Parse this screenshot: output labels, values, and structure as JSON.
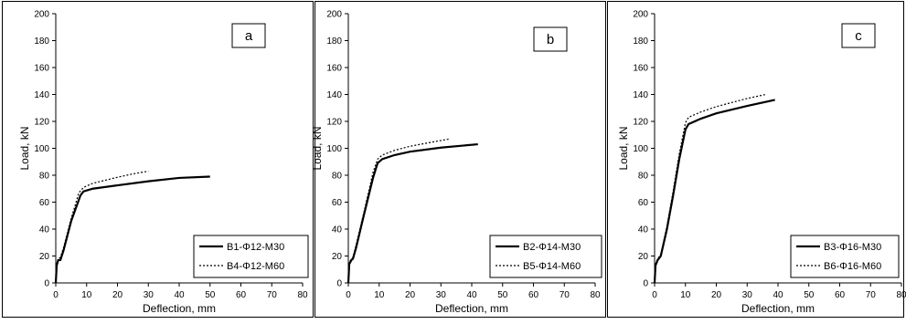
{
  "chart_data": [
    {
      "type": "line",
      "panel_label": "a",
      "xlabel": "Deflection, mm",
      "ylabel": "Load, kN",
      "xlim": [
        0,
        80
      ],
      "ylim": [
        0,
        200
      ],
      "xticks": [
        "0",
        "10",
        "20",
        "30",
        "40",
        "50",
        "60",
        "70",
        "80"
      ],
      "yticks": [
        "0",
        "20",
        "40",
        "60",
        "80",
        "100",
        "120",
        "140",
        "160",
        "180",
        "200"
      ],
      "grid": false,
      "legend_position": "bottom-right",
      "series": [
        {
          "name": "B1-Φ12-M30",
          "style": "solid",
          "color": "#000000",
          "points": [
            [
              0,
              0
            ],
            [
              0.3,
              13
            ],
            [
              0.8,
              17
            ],
            [
              1.5,
              17
            ],
            [
              2.5,
              24
            ],
            [
              5,
              46
            ],
            [
              8,
              65
            ],
            [
              9,
              68
            ],
            [
              12,
              70
            ],
            [
              20,
              72.5
            ],
            [
              30,
              75.5
            ],
            [
              40,
              78
            ],
            [
              50,
              79
            ]
          ]
        },
        {
          "name": "B4-Φ12-M60",
          "style": "dotted",
          "color": "#000000",
          "points": [
            [
              0,
              0
            ],
            [
              0.3,
              14
            ],
            [
              0.8,
              18
            ],
            [
              1.5,
              19
            ],
            [
              2.5,
              26
            ],
            [
              5,
              48
            ],
            [
              7.5,
              67
            ],
            [
              9,
              71
            ],
            [
              12,
              74
            ],
            [
              20,
              78.5
            ],
            [
              25,
              81
            ],
            [
              30,
              83
            ]
          ]
        }
      ]
    },
    {
      "type": "line",
      "panel_label": "b",
      "xlabel": "Deflection, mm",
      "ylabel": "Load, kN",
      "xlim": [
        0,
        80
      ],
      "ylim": [
        0,
        200
      ],
      "xticks": [
        "0",
        "10",
        "20",
        "30",
        "40",
        "50",
        "60",
        "70",
        "80"
      ],
      "yticks": [
        "0",
        "20",
        "40",
        "60",
        "80",
        "100",
        "120",
        "140",
        "160",
        "180",
        "200"
      ],
      "grid": false,
      "legend_position": "bottom-right",
      "series": [
        {
          "name": "B2-Φ14-M30",
          "style": "solid",
          "color": "#000000",
          "points": [
            [
              0,
              0
            ],
            [
              0.3,
              14
            ],
            [
              1,
              17
            ],
            [
              1.5,
              18
            ],
            [
              2.5,
              26
            ],
            [
              5,
              50
            ],
            [
              8,
              78
            ],
            [
              9.5,
              89
            ],
            [
              11,
              92
            ],
            [
              15,
              95
            ],
            [
              20,
              97.5
            ],
            [
              30,
              100.5
            ],
            [
              42,
              103
            ]
          ]
        },
        {
          "name": "B5-Φ14-M60",
          "style": "dotted",
          "color": "#000000",
          "points": [
            [
              0,
              0
            ],
            [
              0.3,
              15
            ],
            [
              1,
              18
            ],
            [
              1.5,
              19
            ],
            [
              2.5,
              28
            ],
            [
              5,
              52
            ],
            [
              8,
              82
            ],
            [
              9.5,
              92
            ],
            [
              11,
              95
            ],
            [
              15,
              98.5
            ],
            [
              20,
              101.5
            ],
            [
              28,
              105
            ],
            [
              33,
              107
            ]
          ]
        }
      ]
    },
    {
      "type": "line",
      "panel_label": "c",
      "xlabel": "Deflection, mm",
      "ylabel": "Load, kN",
      "xlim": [
        0,
        80
      ],
      "ylim": [
        0,
        200
      ],
      "xticks": [
        "0",
        "10",
        "20",
        "30",
        "40",
        "50",
        "60",
        "70",
        "80"
      ],
      "yticks": [
        "0",
        "20",
        "40",
        "60",
        "80",
        "100",
        "120",
        "140",
        "160",
        "180",
        "200"
      ],
      "grid": false,
      "legend_position": "bottom-right",
      "series": [
        {
          "name": "B3-Φ16-M30",
          "style": "solid",
          "color": "#000000",
          "points": [
            [
              0,
              0
            ],
            [
              0.3,
              13
            ],
            [
              1,
              17
            ],
            [
              2,
              20
            ],
            [
              4,
              40
            ],
            [
              6,
              65
            ],
            [
              8,
              92
            ],
            [
              10,
              114
            ],
            [
              11,
              118
            ],
            [
              15,
              122
            ],
            [
              20,
              126
            ],
            [
              30,
              131.5
            ],
            [
              39,
              136
            ]
          ]
        },
        {
          "name": "B6-Φ16-M60",
          "style": "dotted",
          "color": "#000000",
          "points": [
            [
              0,
              0
            ],
            [
              0.3,
              14
            ],
            [
              1,
              18
            ],
            [
              2,
              21
            ],
            [
              4,
              42
            ],
            [
              6,
              68
            ],
            [
              8,
              96
            ],
            [
              10,
              119
            ],
            [
              11,
              123
            ],
            [
              15,
              127
            ],
            [
              20,
              131
            ],
            [
              30,
              137
            ],
            [
              36,
              140
            ]
          ]
        }
      ]
    }
  ]
}
